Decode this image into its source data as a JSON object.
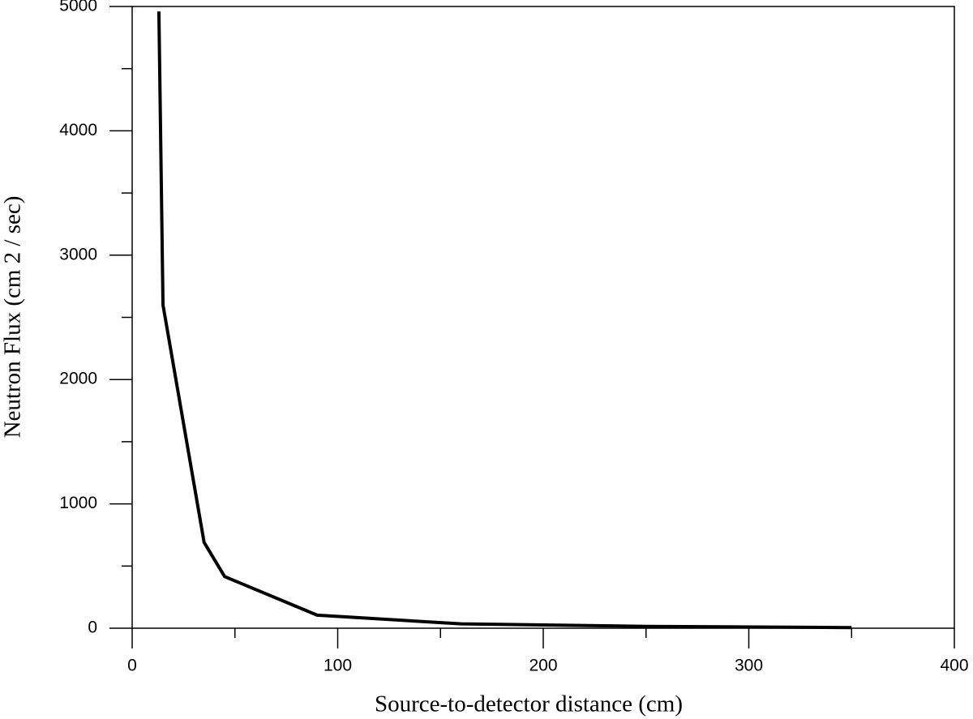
{
  "chart_data": {
    "type": "line",
    "x_label": "Source-to-detector distance (cm)",
    "y_label": "Neutron Flux  (cm 2 / sec)",
    "x": [
      13,
      15,
      35,
      45,
      90,
      160,
      250,
      350
    ],
    "series": [
      {
        "color": "#000000",
        "values": [
          4960,
          2600,
          690,
          415,
          105,
          35,
          15,
          5
        ]
      }
    ],
    "xlim": [
      0,
      400
    ],
    "xticks": [
      0,
      100,
      200,
      300,
      400
    ],
    "x_minor_ticks": [
      50,
      150,
      250,
      350
    ],
    "ylim": [
      0,
      5000
    ],
    "yticks": [
      0,
      1000,
      2000,
      3000,
      4000,
      5000
    ],
    "y_minor_ticks": [
      500,
      1500,
      2500,
      3500,
      4500
    ],
    "grid": false
  }
}
